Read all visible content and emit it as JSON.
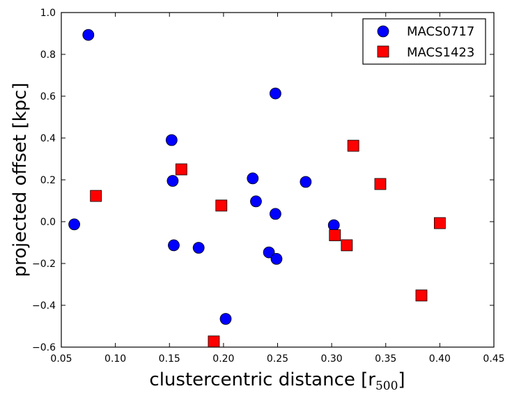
{
  "chart_data": {
    "type": "scatter",
    "title": "",
    "xlabel": "clustercentric distance [r",
    "xlabel_subscript": "500",
    "xlabel_suffix": "]",
    "ylabel": "projected offset [kpc]",
    "xlim": [
      0.05,
      0.45
    ],
    "ylim": [
      -0.6,
      1.0
    ],
    "xticks": [
      0.05,
      0.1,
      0.15,
      0.2,
      0.25,
      0.3,
      0.35,
      0.4,
      0.45
    ],
    "xtick_labels": [
      "0.05",
      "0.10",
      "0.15",
      "0.20",
      "0.25",
      "0.30",
      "0.35",
      "0.40",
      "0.45"
    ],
    "yticks": [
      -0.6,
      -0.4,
      -0.2,
      0.0,
      0.2,
      0.4,
      0.6,
      0.8,
      1.0
    ],
    "ytick_labels": [
      "−0.6",
      "−0.4",
      "−0.2",
      "0.0",
      "0.2",
      "0.4",
      "0.6",
      "0.8",
      "1.0"
    ],
    "grid": false,
    "legend_position": "top-right",
    "series": [
      {
        "name": "MACS0717",
        "marker": "circle",
        "color": "#0000ff",
        "points": [
          [
            0.062,
            -0.013
          ],
          [
            0.075,
            0.893
          ],
          [
            0.152,
            0.39
          ],
          [
            0.153,
            0.195
          ],
          [
            0.154,
            -0.113
          ],
          [
            0.177,
            -0.125
          ],
          [
            0.202,
            -0.465
          ],
          [
            0.227,
            0.207
          ],
          [
            0.23,
            0.097
          ],
          [
            0.242,
            -0.147
          ],
          [
            0.248,
            0.613
          ],
          [
            0.248,
            0.037
          ],
          [
            0.249,
            -0.178
          ],
          [
            0.276,
            0.19
          ],
          [
            0.302,
            -0.017
          ]
        ]
      },
      {
        "name": "MACS1423",
        "marker": "square",
        "color": "#ff0000",
        "points": [
          [
            0.082,
            0.123
          ],
          [
            0.161,
            0.25
          ],
          [
            0.191,
            -0.573
          ],
          [
            0.198,
            0.077
          ],
          [
            0.303,
            -0.065
          ],
          [
            0.314,
            -0.113
          ],
          [
            0.32,
            0.363
          ],
          [
            0.345,
            0.18
          ],
          [
            0.383,
            -0.353
          ],
          [
            0.4,
            -0.007
          ]
        ]
      }
    ]
  }
}
